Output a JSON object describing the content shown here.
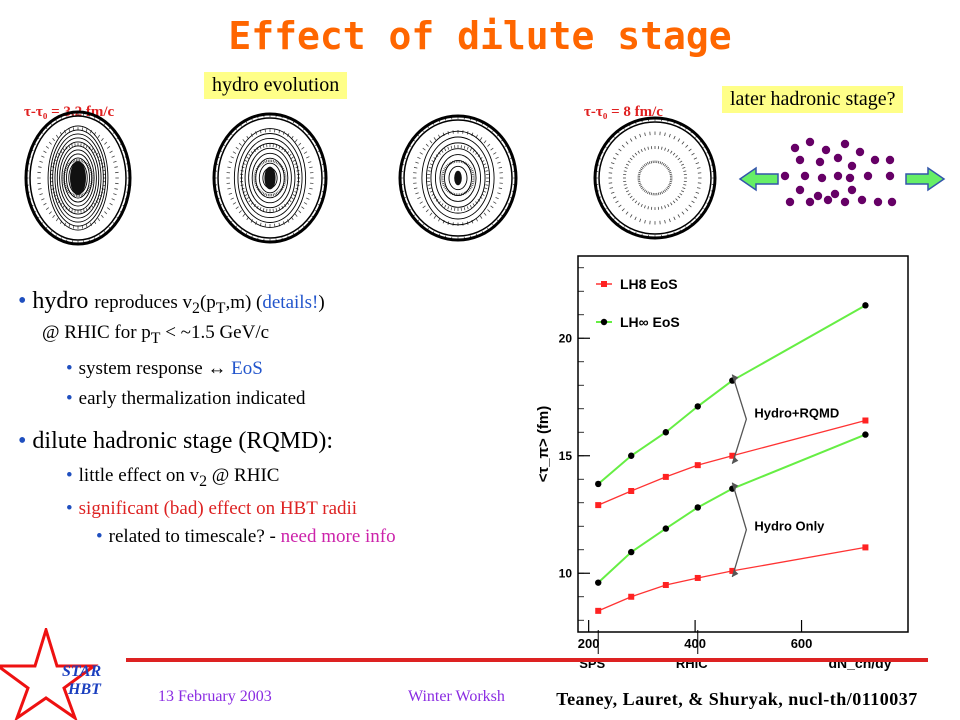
{
  "title": "Effect of dilute stage",
  "labels": {
    "hydro_evolution": "hydro evolution",
    "later_hadronic": "later hadronic stage?",
    "tau_start": "τ-τ₀ = 3.2 fm/c",
    "tau_end": "τ-τ₀ = 8 fm/c"
  },
  "bullets": {
    "b1": {
      "main": "hydro",
      "rest_before": "reproduces v",
      "sub2": "2",
      "paren_open": "(p",
      "subT": "T",
      "paren_close": ",m) (",
      "details": "details!",
      "close": ")"
    },
    "b1_line2": {
      "pre": "@ RHIC for p",
      "subT": "T",
      "post": " < ~1.5 GeV/c"
    },
    "b1a": {
      "pre": "system response ",
      "arrow": "↔",
      "eos": " EoS"
    },
    "b1b": "early thermalization indicated",
    "b2": "dilute hadronic stage (RQMD):",
    "b2a": {
      "pre": "little effect on v",
      "sub": "2",
      "post": " @ RHIC"
    },
    "b2b": "significant (bad) effect on HBT radii",
    "b2c": {
      "pre": "related to timescale? - ",
      "more": "need more info"
    }
  },
  "chart_data": {
    "type": "scatter",
    "xlabel": "dN_ch/dy",
    "ylabel": "<τ_π> (fm)",
    "xlim": [
      180,
      800
    ],
    "ylim": [
      7.5,
      23.5
    ],
    "x_ticks": [
      "200",
      "400",
      "600"
    ],
    "y_ticks": [
      "10",
      "15",
      "20"
    ],
    "series": [
      {
        "name": "LH8 EoS",
        "color": "#ff2222",
        "marker": "square",
        "group": "Hydro+RQMD",
        "points": [
          [
            218,
            12.9
          ],
          [
            280,
            13.5
          ],
          [
            345,
            14.1
          ],
          [
            405,
            14.6
          ],
          [
            470,
            15.0
          ],
          [
            720,
            16.5
          ]
        ]
      },
      {
        "name": "LH∞ EoS",
        "color": "#000000",
        "marker": "circle",
        "group": "Hydro+RQMD",
        "points": [
          [
            218,
            13.8
          ],
          [
            280,
            15.0
          ],
          [
            345,
            16.0
          ],
          [
            405,
            17.1
          ],
          [
            470,
            18.2
          ],
          [
            720,
            21.4
          ]
        ]
      },
      {
        "name": "LH8 EoS",
        "color": "#ff2222",
        "marker": "square",
        "group": "Hydro Only",
        "points": [
          [
            218,
            8.4
          ],
          [
            280,
            9.0
          ],
          [
            345,
            9.5
          ],
          [
            405,
            9.8
          ],
          [
            470,
            10.1
          ],
          [
            720,
            11.1
          ]
        ]
      },
      {
        "name": "LH∞ EoS",
        "color": "#000000",
        "marker": "circle",
        "group": "Hydro Only",
        "points": [
          [
            218,
            9.6
          ],
          [
            280,
            10.9
          ],
          [
            345,
            11.9
          ],
          [
            405,
            12.8
          ],
          [
            470,
            13.6
          ],
          [
            720,
            15.9
          ]
        ]
      }
    ],
    "legend": [
      "LH8 EoS",
      "LH∞ EoS"
    ],
    "annotations": [
      "Hydro+RQMD",
      "Hydro Only",
      "SPS",
      "RHIC"
    ]
  },
  "footer": {
    "logo_line1": "STAR",
    "logo_line2": "HBT",
    "date": "13 February 2003",
    "conference": "Winter Worksh",
    "reference": "Teaney, Lauret, & Shuryak, nucl-th/0110037"
  },
  "colors": {
    "title": "#ff6600",
    "highlight": "#ffff88",
    "particle": "#660066",
    "arrow_fill": "#66ee66",
    "arrow_stroke": "#3355aa",
    "line_green": "#66ee44",
    "line_red": "#ff3333"
  }
}
